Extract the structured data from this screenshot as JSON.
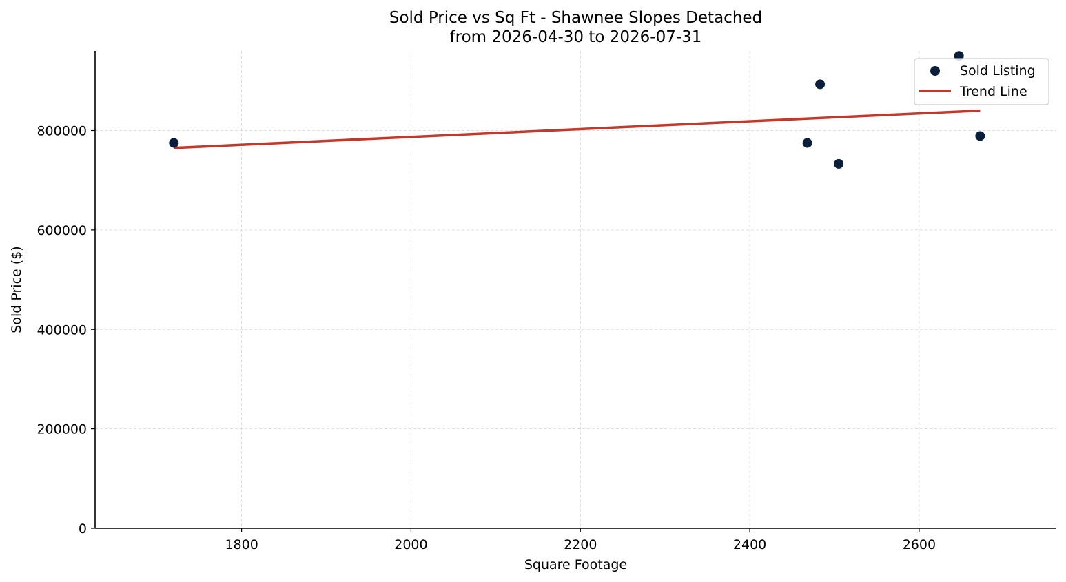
{
  "chart_data": {
    "type": "scatter",
    "title": "Sold Price vs Sq Ft - Shawnee Slopes Detached",
    "subtitle": "from 2026-04-30 to 2026-07-31",
    "xlabel": "Square Footage",
    "ylabel": "Sold Price ($)",
    "xlim": [
      1627,
      2762
    ],
    "ylim": [
      0,
      960000
    ],
    "xticks": [
      1800,
      2000,
      2200,
      2400,
      2600
    ],
    "yticks": [
      0,
      200000,
      400000,
      600000,
      800000
    ],
    "grid": true,
    "legend_position": "top-right",
    "series": [
      {
        "name": "Sold Listing",
        "kind": "scatter",
        "color": "#0b1f3a",
        "points": [
          {
            "x": 1720,
            "y": 775000
          },
          {
            "x": 2468,
            "y": 775000
          },
          {
            "x": 2483,
            "y": 893000
          },
          {
            "x": 2505,
            "y": 733000
          },
          {
            "x": 2647,
            "y": 950000
          },
          {
            "x": 2672,
            "y": 789000
          }
        ]
      },
      {
        "name": "Trend Line",
        "kind": "line",
        "color": "#c0392b",
        "points": [
          {
            "x": 1720,
            "y": 765000
          },
          {
            "x": 2672,
            "y": 840000
          }
        ]
      }
    ]
  }
}
